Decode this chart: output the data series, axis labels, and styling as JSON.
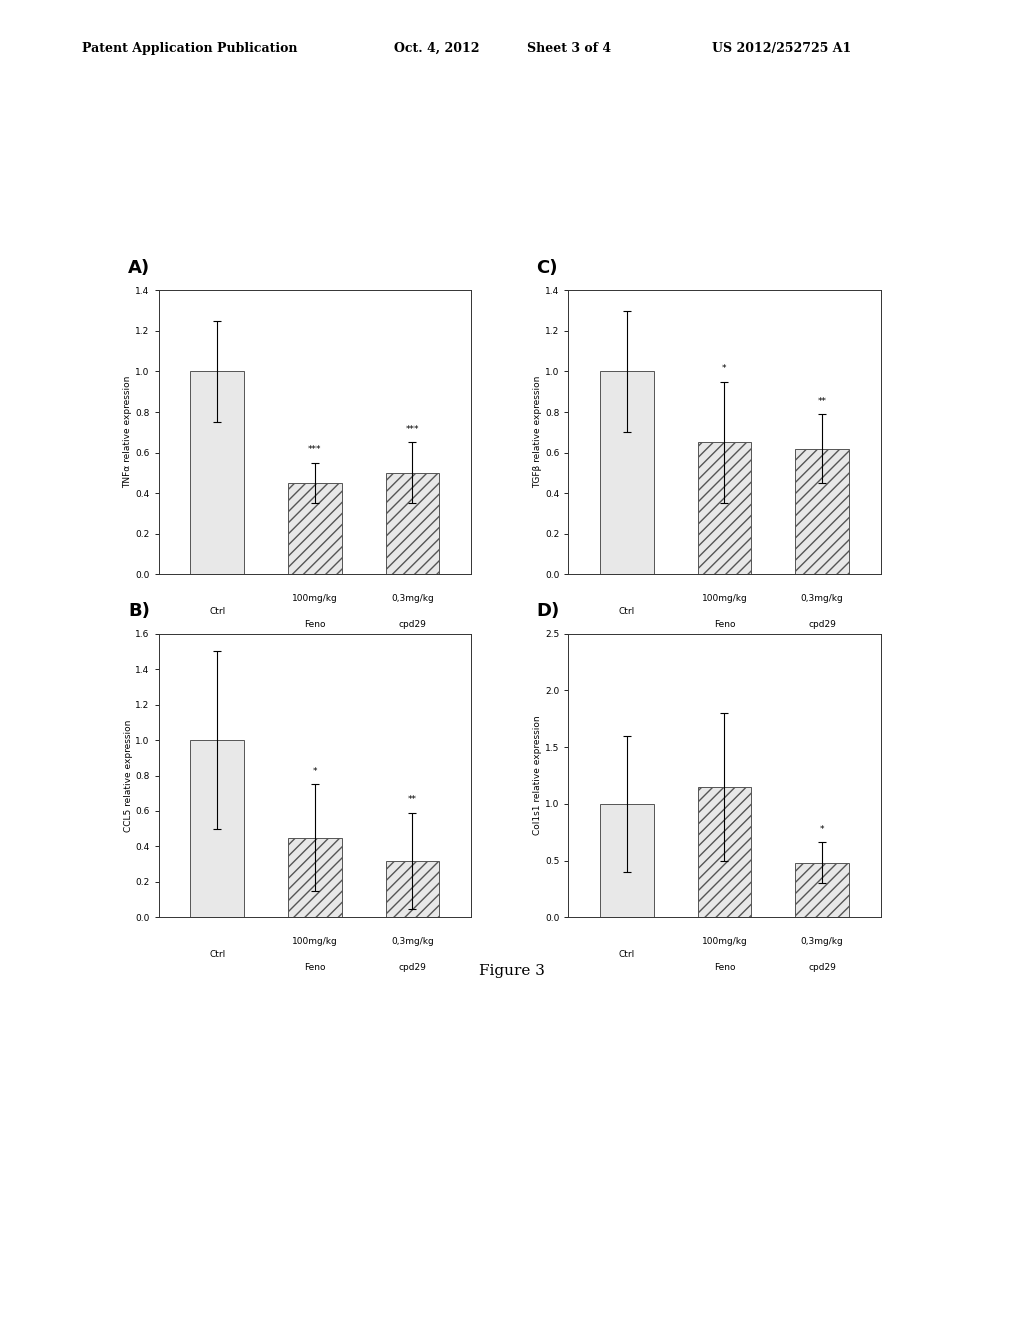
{
  "panels": [
    {
      "label": "A)",
      "ylabel": "TNFα relative expression",
      "ylim": [
        0,
        1.4
      ],
      "yticks": [
        0.0,
        0.2,
        0.4,
        0.6,
        0.8,
        1.0,
        1.2,
        1.4
      ],
      "bars": [
        1.0,
        0.45,
        0.5
      ],
      "errors": [
        0.25,
        0.1,
        0.15
      ],
      "hatch": [
        "",
        "///",
        "///"
      ],
      "significance": [
        "",
        "***",
        "***"
      ],
      "x_labels": [
        [
          "Ctrl",
          ""
        ],
        [
          "100mg/kg",
          "Feno"
        ],
        [
          "0,3mg/kg",
          "cpd29"
        ]
      ]
    },
    {
      "label": "C)",
      "ylabel": "TGFβ relative expression",
      "ylim": [
        0,
        1.4
      ],
      "yticks": [
        0.0,
        0.2,
        0.4,
        0.6,
        0.8,
        1.0,
        1.2,
        1.4
      ],
      "bars": [
        1.0,
        0.65,
        0.62
      ],
      "errors": [
        0.3,
        0.3,
        0.17
      ],
      "hatch": [
        "",
        "///",
        "///"
      ],
      "significance": [
        "",
        "*",
        "**"
      ],
      "x_labels": [
        [
          "Ctrl",
          ""
        ],
        [
          "100mg/kg",
          "Feno"
        ],
        [
          "0,3mg/kg",
          "cpd29"
        ]
      ]
    },
    {
      "label": "B)",
      "ylabel": "CCL5 relative expression",
      "ylim": [
        0,
        1.6
      ],
      "yticks": [
        0.0,
        0.2,
        0.4,
        0.6,
        0.8,
        1.0,
        1.2,
        1.4,
        1.6
      ],
      "bars": [
        1.0,
        0.45,
        0.32
      ],
      "errors": [
        0.5,
        0.3,
        0.27
      ],
      "hatch": [
        "",
        "///",
        "///"
      ],
      "significance": [
        "",
        "*",
        "**"
      ],
      "x_labels": [
        [
          "Ctrl",
          ""
        ],
        [
          "100mg/kg",
          "Feno"
        ],
        [
          "0,3mg/kg",
          "cpd29"
        ]
      ]
    },
    {
      "label": "D)",
      "ylabel": "Col1s1 relative expression",
      "ylim": [
        0,
        2.5
      ],
      "yticks": [
        0.0,
        0.5,
        1.0,
        1.5,
        2.0,
        2.5
      ],
      "bars": [
        1.0,
        1.15,
        0.48
      ],
      "errors": [
        0.6,
        0.65,
        0.18
      ],
      "hatch": [
        "",
        "///",
        "///"
      ],
      "significance": [
        "",
        "",
        "*"
      ],
      "x_labels": [
        [
          "Ctrl",
          ""
        ],
        [
          "100mg/kg",
          "Feno"
        ],
        [
          "0,3mg/kg",
          "cpd29"
        ]
      ]
    }
  ],
  "figure_title": "Figure 3",
  "header_left": "Patent Application Publication",
  "header_date": "Oct. 4, 2012",
  "header_sheet": "Sheet 3 of 4",
  "header_right": "US 2012/252725 A1",
  "bar_color": "#e8e8e8",
  "bar_edge_color": "#555555",
  "bar_width": 0.55,
  "background_color": "#ffffff"
}
